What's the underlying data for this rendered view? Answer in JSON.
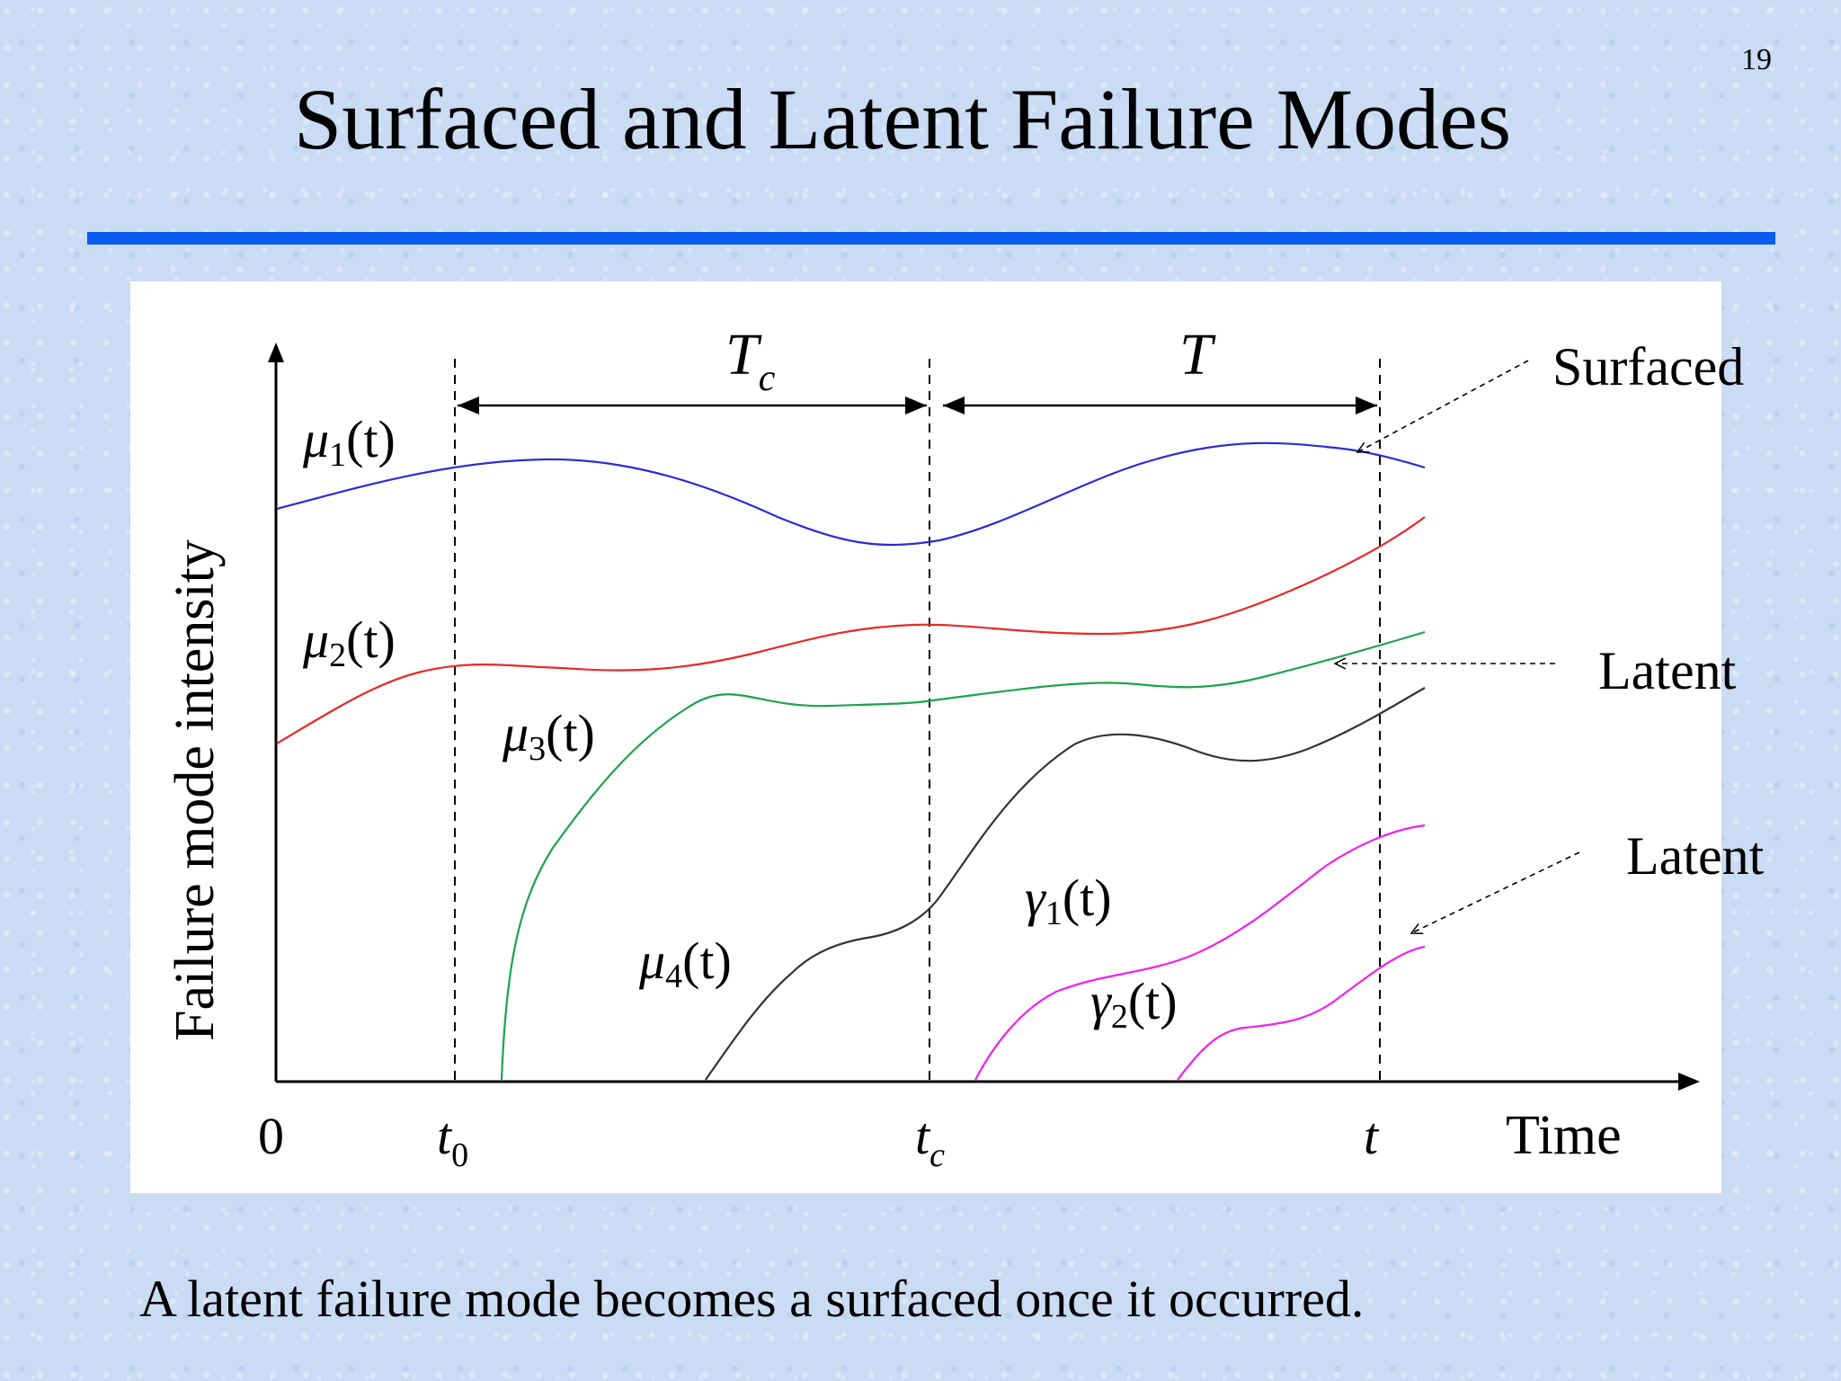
{
  "slide": {
    "number": "19",
    "title": "Surfaced and Latent Failure Modes",
    "caption": "A latent failure mode becomes a surfaced once it occurred."
  },
  "figure": {
    "ylabel": "Failure mode intensity",
    "xlabel": "Time",
    "origin_label": "0",
    "ticks": [
      {
        "base": "t",
        "sub": "0"
      },
      {
        "base": "t",
        "sub": "c"
      },
      {
        "base": "t",
        "sub": ""
      }
    ],
    "intervals": [
      {
        "base": "T",
        "sub": "c"
      },
      {
        "base": "T",
        "sub": ""
      }
    ],
    "curves": [
      {
        "sym": "μ",
        "sub": "1",
        "arg": "(t)",
        "color": "#2b2bd6"
      },
      {
        "sym": "μ",
        "sub": "2",
        "arg": "(t)",
        "color": "#e8282a"
      },
      {
        "sym": "μ",
        "sub": "3",
        "arg": "(t)",
        "color": "#1aa34a"
      },
      {
        "sym": "μ",
        "sub": "4",
        "arg": "(t)",
        "color": "#333333"
      },
      {
        "sym": "γ",
        "sub": "1",
        "arg": "(t)",
        "color": "#ee22ee"
      },
      {
        "sym": "γ",
        "sub": "2",
        "arg": "(t)",
        "color": "#ee22ee"
      }
    ],
    "annotations": [
      "Surfaced",
      "Latent",
      "Latent"
    ]
  }
}
